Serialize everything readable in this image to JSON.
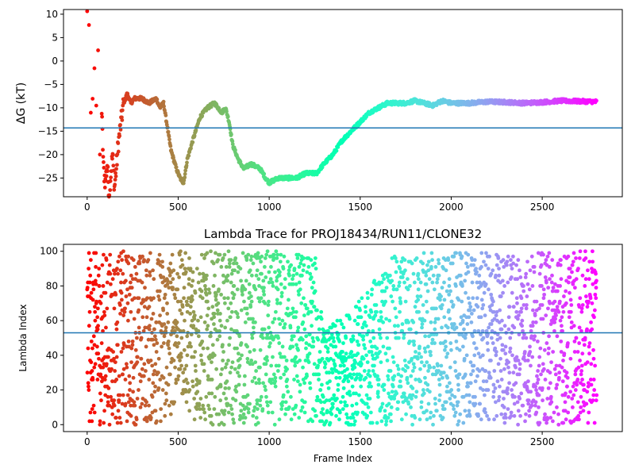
{
  "chart_data": [
    {
      "type": "scatter",
      "title": "",
      "xlabel": "",
      "ylabel": "ΔG (kT)",
      "xlim": [
        -130,
        2940
      ],
      "ylim": [
        -29,
        11
      ],
      "xticks": [
        0,
        500,
        1000,
        1500,
        2000,
        2500
      ],
      "xtick_labels": [
        "0",
        "500",
        "1000",
        "1500",
        "2000",
        "2500"
      ],
      "yticks": [
        10,
        5,
        0,
        -5,
        -10,
        -15,
        -20,
        -25
      ],
      "ytick_labels": [
        "10",
        "5",
        "0",
        "−5",
        "−10",
        "−15",
        "−20",
        "−25"
      ],
      "hline": -14.3,
      "hline_color": "#1f77b4",
      "colormap": "rainbow",
      "frames": 2800,
      "trace_anchors": [
        [
          0,
          10
        ],
        [
          5,
          -20
        ],
        [
          10,
          7
        ],
        [
          15,
          -4
        ],
        [
          20,
          -12
        ],
        [
          25,
          1
        ],
        [
          30,
          -7
        ],
        [
          35,
          -24
        ],
        [
          40,
          0
        ],
        [
          45,
          -16
        ],
        [
          50,
          -9
        ],
        [
          55,
          -12
        ],
        [
          60,
          1
        ],
        [
          65,
          -8
        ],
        [
          70,
          -20
        ],
        [
          80,
          -11
        ],
        [
          90,
          -23
        ],
        [
          100,
          -26
        ],
        [
          110,
          -22
        ],
        [
          120,
          -28
        ],
        [
          130,
          -24
        ],
        [
          140,
          -20
        ],
        [
          150,
          -27
        ],
        [
          160,
          -23
        ],
        [
          170,
          -18
        ],
        [
          180,
          -15
        ],
        [
          190,
          -12
        ],
        [
          200,
          -9
        ],
        [
          220,
          -7
        ],
        [
          240,
          -9
        ],
        [
          260,
          -8
        ],
        [
          300,
          -8
        ],
        [
          340,
          -9
        ],
        [
          380,
          -8
        ],
        [
          400,
          -10
        ],
        [
          420,
          -9
        ],
        [
          440,
          -14
        ],
        [
          460,
          -19
        ],
        [
          490,
          -23
        ],
        [
          510,
          -25
        ],
        [
          530,
          -26
        ],
        [
          550,
          -21
        ],
        [
          580,
          -17
        ],
        [
          620,
          -12
        ],
        [
          660,
          -10
        ],
        [
          700,
          -9
        ],
        [
          740,
          -11
        ],
        [
          760,
          -10
        ],
        [
          780,
          -13
        ],
        [
          800,
          -18
        ],
        [
          830,
          -21
        ],
        [
          860,
          -23
        ],
        [
          900,
          -22
        ],
        [
          950,
          -23
        ],
        [
          980,
          -25
        ],
        [
          1000,
          -26
        ],
        [
          1050,
          -25
        ],
        [
          1100,
          -25
        ],
        [
          1150,
          -25
        ],
        [
          1200,
          -24
        ],
        [
          1260,
          -24
        ],
        [
          1300,
          -22
        ],
        [
          1350,
          -20
        ],
        [
          1400,
          -17
        ],
        [
          1450,
          -15
        ],
        [
          1500,
          -13
        ],
        [
          1550,
          -11
        ],
        [
          1600,
          -10
        ],
        [
          1650,
          -9
        ],
        [
          1700,
          -9
        ],
        [
          1750,
          -9
        ],
        [
          1800,
          -8.5
        ],
        [
          1850,
          -9
        ],
        [
          1900,
          -9.5
        ],
        [
          1950,
          -8.5
        ],
        [
          2000,
          -9
        ],
        [
          2100,
          -9
        ],
        [
          2200,
          -8.7
        ],
        [
          2300,
          -8.8
        ],
        [
          2400,
          -9
        ],
        [
          2500,
          -8.8
        ],
        [
          2600,
          -8.5
        ],
        [
          2700,
          -8.6
        ],
        [
          2800,
          -8.7
        ]
      ]
    },
    {
      "type": "scatter",
      "title": "Lambda Trace for PROJ18434/RUN11/CLONE32",
      "xlabel": "Frame Index",
      "ylabel": "Lambda Index",
      "xlim": [
        -130,
        2940
      ],
      "ylim": [
        -4,
        104
      ],
      "xticks": [
        0,
        500,
        1000,
        1500,
        2000,
        2500
      ],
      "xtick_labels": [
        "0",
        "500",
        "1000",
        "1500",
        "2000",
        "2500"
      ],
      "yticks": [
        0,
        20,
        40,
        60,
        80,
        100
      ],
      "ytick_labels": [
        "0",
        "20",
        "40",
        "60",
        "80",
        "100"
      ],
      "hline": 53,
      "hline_color": "#1f77b4",
      "colormap": "rainbow",
      "frames": 2800,
      "lambda_range_by_frame": [
        [
          0,
          0,
          100
        ],
        [
          450,
          0,
          100
        ],
        [
          500,
          20,
          100
        ],
        [
          600,
          0,
          100
        ],
        [
          1250,
          0,
          100
        ],
        [
          1300,
          0,
          55
        ],
        [
          1400,
          0,
          62
        ],
        [
          1500,
          0,
          72
        ],
        [
          1600,
          0,
          88
        ],
        [
          1700,
          0,
          99
        ],
        [
          2800,
          0,
          100
        ]
      ]
    }
  ]
}
